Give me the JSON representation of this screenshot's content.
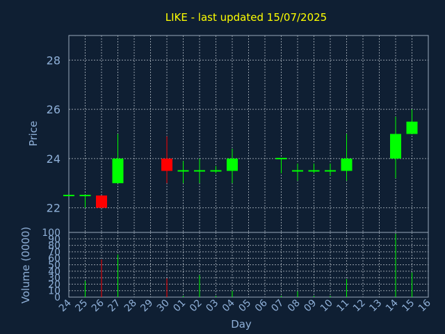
{
  "chart_data": {
    "type": "candlestick",
    "title": "LIKE - last updated 15/07/2025",
    "xlabel": "Day",
    "price_panel": {
      "ylabel": "Price",
      "ylim": [
        21.0,
        29.0
      ],
      "yticks": [
        22,
        24,
        26,
        28
      ],
      "grid": true
    },
    "volume_panel": {
      "ylabel": "Volume (0000)",
      "ylim": [
        0,
        100
      ],
      "yticks": [
        0,
        10,
        20,
        30,
        40,
        50,
        60,
        70,
        80,
        90,
        100
      ],
      "grid": true
    },
    "x_tick_labels": [
      "24",
      "25",
      "26",
      "27",
      "28",
      "29",
      "30",
      "01",
      "02",
      "03",
      "04",
      "05",
      "06",
      "07",
      "08",
      "09",
      "10",
      "11",
      "12",
      "13",
      "14",
      "15",
      "16"
    ],
    "candles": [
      {
        "day": "24",
        "open": 22.5,
        "high": 22.5,
        "low": 22.5,
        "close": 22.5,
        "volume": 0
      },
      {
        "day": "25",
        "open": 22.5,
        "high": 22.5,
        "low": 22.0,
        "close": 22.5,
        "volume": 25
      },
      {
        "day": "26",
        "open": 22.5,
        "high": 22.5,
        "low": 22.0,
        "close": 22.0,
        "volume": 58
      },
      {
        "day": "27",
        "open": 23.0,
        "high": 25.0,
        "low": 23.0,
        "close": 24.0,
        "volume": 66
      },
      {
        "day": "30",
        "open": 24.0,
        "high": 24.9,
        "low": 23.0,
        "close": 23.5,
        "volume": 29
      },
      {
        "day": "01",
        "open": 23.5,
        "high": 23.9,
        "low": 23.0,
        "close": 23.5,
        "volume": 2
      },
      {
        "day": "02",
        "open": 23.5,
        "high": 24.0,
        "low": 23.0,
        "close": 23.5,
        "volume": 34
      },
      {
        "day": "03",
        "open": 23.5,
        "high": 23.7,
        "low": 23.4,
        "close": 23.5,
        "volume": 2
      },
      {
        "day": "04",
        "open": 23.5,
        "high": 24.4,
        "low": 23.0,
        "close": 24.0,
        "volume": 10
      },
      {
        "day": "07",
        "open": 24.0,
        "high": 24.0,
        "low": 23.4,
        "close": 24.0,
        "volume": 2
      },
      {
        "day": "08",
        "open": 23.5,
        "high": 23.8,
        "low": 23.1,
        "close": 23.5,
        "volume": 9
      },
      {
        "day": "09",
        "open": 23.5,
        "high": 23.8,
        "low": 23.4,
        "close": 23.5,
        "volume": 2
      },
      {
        "day": "10",
        "open": 23.5,
        "high": 23.8,
        "low": 23.3,
        "close": 23.5,
        "volume": 2
      },
      {
        "day": "11",
        "open": 23.5,
        "high": 25.0,
        "low": 23.1,
        "close": 24.0,
        "volume": 28
      },
      {
        "day": "14",
        "open": 24.0,
        "high": 25.7,
        "low": 23.2,
        "close": 25.0,
        "volume": 98
      },
      {
        "day": "15",
        "open": 25.0,
        "high": 26.0,
        "low": 25.0,
        "close": 25.5,
        "volume": 38
      }
    ],
    "colors": {
      "background": "#0f1f33",
      "up": "#00ff00",
      "down": "#ff0000",
      "title": "#ffff00",
      "axis_text": "#8fb0d8",
      "frame": "#9aaabb",
      "grid": "#c0c8d0"
    }
  }
}
